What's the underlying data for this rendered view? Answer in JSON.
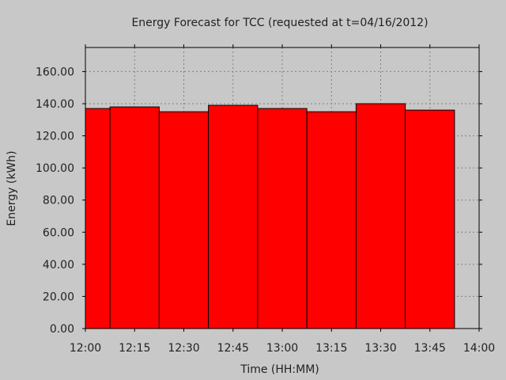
{
  "chart_data": {
    "type": "bar",
    "title": "Energy Forecast for TCC (requested at t=04/16/2012)",
    "xlabel": "Time (HH:MM)",
    "ylabel": "Energy (kWh)",
    "x_ticks": [
      "12:00",
      "12:15",
      "12:30",
      "12:45",
      "13:00",
      "13:15",
      "13:30",
      "13:45",
      "14:00"
    ],
    "y_ticks": [
      "0.00",
      "20.00",
      "40.00",
      "60.00",
      "80.00",
      "100.00",
      "120.00",
      "140.00",
      "160.00"
    ],
    "ylim": [
      0,
      175
    ],
    "xlim": [
      "12:00",
      "14:00"
    ],
    "grid": true,
    "bars": [
      {
        "start": "12:00",
        "end": "12:07.5",
        "value": 137
      },
      {
        "start": "12:07.5",
        "end": "12:22.5",
        "value": 138
      },
      {
        "start": "12:22.5",
        "end": "12:37.5",
        "value": 135
      },
      {
        "start": "12:37.5",
        "end": "12:52.5",
        "value": 139
      },
      {
        "start": "12:52.5",
        "end": "13:07.5",
        "value": 137
      },
      {
        "start": "13:07.5",
        "end": "13:22.5",
        "value": 135
      },
      {
        "start": "13:22.5",
        "end": "13:37.5",
        "value": 140
      },
      {
        "start": "13:37.5",
        "end": "13:52.5",
        "value": 136
      }
    ],
    "bar_color": "#ff0000",
    "bar_outline_color": "#000000",
    "plot_background": "#c8c8c8",
    "grid_color": "#808080"
  }
}
